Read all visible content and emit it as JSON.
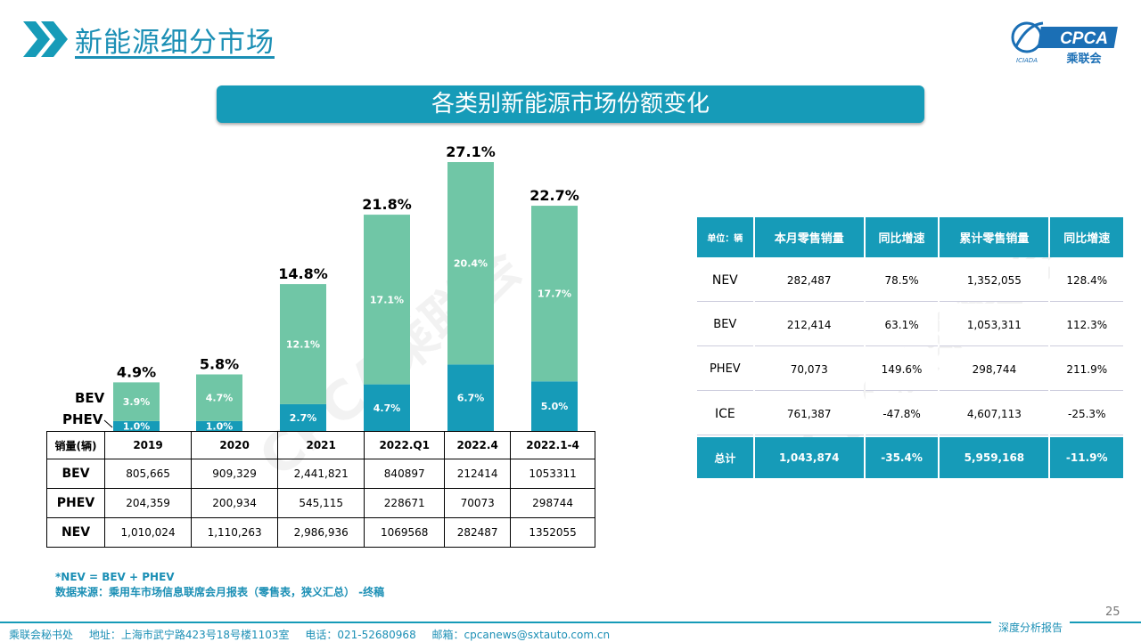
{
  "header": {
    "title": "新能源细分市场",
    "logo_text": "CPCA",
    "logo_sub": "乘联会",
    "logo_left_text": "ICIADA"
  },
  "banner": {
    "title": "各类别新能源市场份额变化"
  },
  "chart_data": {
    "type": "bar",
    "stacked": true,
    "categories": [
      "2019",
      "2020",
      "2021",
      "2022.Q1",
      "2022.4",
      "2022.1-4"
    ],
    "series": [
      {
        "name": "PHEV",
        "values": [
          1.0,
          1.0,
          2.7,
          4.7,
          6.7,
          5.0
        ],
        "labels": [
          "1.0%",
          "1.0%",
          "2.7%",
          "4.7%",
          "6.7%",
          "5.0%"
        ],
        "color": "#169bb8"
      },
      {
        "name": "BEV",
        "values": [
          3.9,
          4.7,
          12.1,
          17.1,
          20.4,
          17.7
        ],
        "labels": [
          "3.9%",
          "4.7%",
          "12.1%",
          "17.1%",
          "20.4%",
          "17.7%"
        ],
        "color": "#70c6a6"
      }
    ],
    "totals": [
      4.9,
      5.8,
      14.8,
      21.8,
      27.1,
      22.7
    ],
    "total_labels": [
      "4.9%",
      "5.8%",
      "14.8%",
      "21.8%",
      "27.1%",
      "22.7%"
    ],
    "ylim": [
      0,
      28
    ]
  },
  "sales_table": {
    "header": [
      "销量(辆)",
      "2019",
      "2020",
      "2021",
      "2022.Q1",
      "2022.4",
      "2022.1-4"
    ],
    "rows": [
      [
        "BEV",
        "805,665",
        "909,329",
        "2,441,821",
        "840897",
        "212414",
        "1053311"
      ],
      [
        "PHEV",
        "204,359",
        "200,934",
        "545,115",
        "228671",
        "70073",
        "298744"
      ],
      [
        "NEV",
        "1,010,024",
        "1,110,263",
        "2,986,936",
        "1069568",
        "282487",
        "1352055"
      ]
    ]
  },
  "right_table": {
    "header": [
      "单位：辆",
      "本月零售销量",
      "同比增速",
      "累计零售销量",
      "同比增速"
    ],
    "rows": [
      [
        "NEV",
        "282,487",
        "78.5%",
        "1,352,055",
        "128.4%"
      ],
      [
        "BEV",
        "212,414",
        "63.1%",
        "1,053,311",
        "112.3%"
      ],
      [
        "PHEV",
        "70,073",
        "149.6%",
        "298,744",
        "211.9%"
      ],
      [
        "ICE",
        "761,387",
        "-47.8%",
        "4,607,113",
        "-25.3%"
      ],
      [
        "总计",
        "1,043,874",
        "-35.4%",
        "5,959,168",
        "-11.9%"
      ]
    ]
  },
  "notes": {
    "line1": "*NEV = BEV + PHEV",
    "line2": "数据来源：乘用车市场信息联席会月报表（零售表，狭义汇总） -终稿"
  },
  "footer": {
    "org": "乘联会秘书处",
    "address": "地址：上海市武宁路423号18号楼1103室",
    "phone": "电话：021-52680968",
    "email": "邮箱：cpcanews@sxtauto.com.cn",
    "page": "25",
    "tag": "深度分析报告"
  },
  "watermark": "CPCA乘联会",
  "colors": {
    "accent": "#169bb8",
    "bev": "#70c6a6",
    "phev": "#169bb8",
    "title": "#1b8fb5"
  }
}
